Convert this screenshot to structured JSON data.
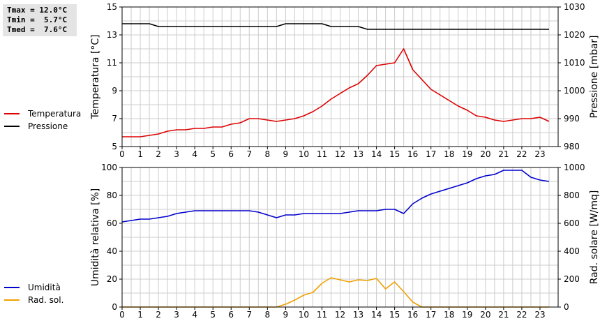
{
  "stats": {
    "lines": [
      "Tmax = 12.0°C",
      "Tmin =  5.7°C",
      "Tmed =  7.6°C"
    ]
  },
  "colors": {
    "temperature": "#dd0000",
    "pressure": "#000000",
    "humidity": "#0000cc",
    "solar": "#f0a000",
    "grid": "#cccccc"
  },
  "legend_top": [
    {
      "label": "Temperatura",
      "color": "#dd0000"
    },
    {
      "label": "Pressione",
      "color": "#000000"
    }
  ],
  "legend_bottom": [
    {
      "label": "Umidità",
      "color": "#0000cc"
    },
    {
      "label": "Rad. sol.",
      "color": "#f0a000"
    }
  ],
  "chart_data": [
    {
      "type": "line",
      "xlabel": "",
      "ylabel": "Temperatura [°C]",
      "y2label": "Pressione [mbar]",
      "xlim": [
        0,
        24
      ],
      "ylim": [
        5,
        15
      ],
      "y2lim": [
        980,
        1030
      ],
      "xticks": [
        "0",
        "1",
        "2",
        "3",
        "4",
        "5",
        "6",
        "7",
        "8",
        "9",
        "10",
        "11",
        "12",
        "13",
        "14",
        "15",
        "16",
        "17",
        "18",
        "19",
        "20",
        "21",
        "22",
        "23"
      ],
      "yticks": [
        "5",
        "7",
        "9",
        "11",
        "13",
        "15"
      ],
      "y2ticks": [
        "980",
        "990",
        "1000",
        "1010",
        "1020",
        "1030"
      ],
      "grid": true,
      "legend_placement": "left",
      "series": [
        {
          "name": "Temperatura",
          "axis": "left",
          "x": [
            0,
            0.5,
            1,
            1.5,
            2,
            2.5,
            3,
            3.5,
            4,
            4.5,
            5,
            5.5,
            6,
            6.5,
            7,
            7.5,
            8,
            8.5,
            9,
            9.5,
            10,
            10.5,
            11,
            11.5,
            12,
            12.5,
            13,
            13.5,
            14,
            14.5,
            15,
            15.5,
            16,
            16.5,
            17,
            17.5,
            18,
            18.5,
            19,
            19.5,
            20,
            20.5,
            21,
            21.5,
            22,
            22.5,
            23,
            23.5
          ],
          "values": [
            5.7,
            5.7,
            5.7,
            5.8,
            5.9,
            6.1,
            6.2,
            6.2,
            6.3,
            6.3,
            6.4,
            6.4,
            6.6,
            6.7,
            7.0,
            7.0,
            6.9,
            6.8,
            6.9,
            7.0,
            7.2,
            7.5,
            7.9,
            8.4,
            8.8,
            9.2,
            9.5,
            10.1,
            10.8,
            10.9,
            11.0,
            12.0,
            10.5,
            9.8,
            9.1,
            8.7,
            8.3,
            7.9,
            7.6,
            7.2,
            7.1,
            6.9,
            6.8,
            6.9,
            7.0,
            7.0,
            7.1,
            6.8
          ]
        },
        {
          "name": "Pressione",
          "axis": "right",
          "x": [
            0,
            1.5,
            2,
            8.5,
            9,
            11,
            11.5,
            13,
            13.5,
            23.5
          ],
          "values": [
            1024,
            1024,
            1023,
            1023,
            1024,
            1024,
            1023,
            1023,
            1022,
            1022
          ]
        }
      ]
    },
    {
      "type": "line",
      "xlabel": "",
      "ylabel": "Umidità relativa [%]",
      "y2label": "Rad. solare [W/mq]",
      "xlim": [
        0,
        24
      ],
      "ylim": [
        0,
        100
      ],
      "y2lim": [
        0,
        1000
      ],
      "xticks": [
        "0",
        "1",
        "2",
        "3",
        "4",
        "5",
        "6",
        "7",
        "8",
        "9",
        "10",
        "11",
        "12",
        "13",
        "14",
        "15",
        "16",
        "17",
        "18",
        "19",
        "20",
        "21",
        "22",
        "23"
      ],
      "yticks": [
        "0",
        "20",
        "40",
        "60",
        "80",
        "100"
      ],
      "y2ticks": [
        "0",
        "200",
        "400",
        "600",
        "800",
        "1000"
      ],
      "grid": true,
      "legend_placement": "left",
      "series": [
        {
          "name": "Umidità",
          "axis": "left",
          "x": [
            0,
            0.5,
            1,
            1.5,
            2,
            2.5,
            3,
            3.5,
            4,
            4.5,
            5,
            5.5,
            6,
            6.5,
            7,
            7.5,
            8,
            8.5,
            9,
            9.5,
            10,
            10.5,
            11,
            11.5,
            12,
            12.5,
            13,
            13.5,
            14,
            14.5,
            15,
            15.5,
            16,
            16.5,
            17,
            17.5,
            18,
            18.5,
            19,
            19.5,
            20,
            20.5,
            21,
            21.5,
            22,
            22.5,
            23,
            23.5
          ],
          "values": [
            61,
            62,
            63,
            63,
            64,
            65,
            67,
            68,
            69,
            69,
            69,
            69,
            69,
            69,
            69,
            68,
            66,
            64,
            66,
            66,
            67,
            67,
            67,
            67,
            67,
            68,
            69,
            69,
            69,
            70,
            70,
            67,
            74,
            78,
            81,
            83,
            85,
            87,
            89,
            92,
            94,
            95,
            98,
            98,
            98,
            93,
            91,
            90
          ]
        },
        {
          "name": "Rad. sol.",
          "axis": "right",
          "x": [
            0,
            0.5,
            1,
            1.5,
            2,
            2.5,
            3,
            3.5,
            4,
            4.5,
            5,
            5.5,
            6,
            6.5,
            7,
            7.5,
            8,
            8.5,
            9,
            9.5,
            10,
            10.5,
            11,
            11.5,
            12,
            12.5,
            13,
            13.5,
            14,
            14.5,
            15,
            15.5,
            16,
            16.5,
            17,
            17.5,
            18,
            18.5,
            19,
            19.5,
            20,
            20.5,
            21,
            21.5,
            22,
            22.5,
            23,
            23.5
          ],
          "values": [
            0,
            0,
            0,
            0,
            0,
            0,
            0,
            0,
            0,
            0,
            0,
            0,
            0,
            0,
            0,
            0,
            0,
            0,
            20,
            50,
            85,
            105,
            170,
            210,
            195,
            180,
            195,
            190,
            205,
            130,
            180,
            110,
            35,
            0,
            0,
            0,
            0,
            0,
            0,
            0,
            0,
            0,
            0,
            0,
            0,
            0,
            0,
            0
          ]
        }
      ]
    }
  ]
}
